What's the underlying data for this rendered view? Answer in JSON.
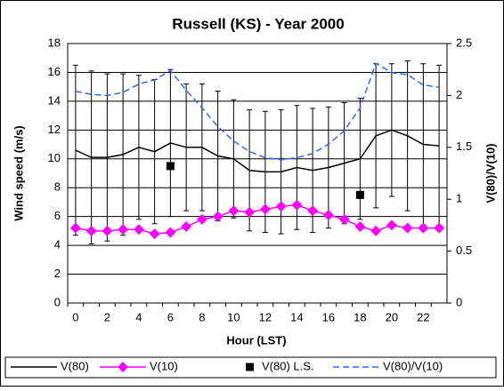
{
  "chart_data": {
    "type": "line",
    "title": "Russell (KS) - Year 2000",
    "x_label": "Hour (LST)",
    "y_label": "Wind speed (m/s)",
    "y2_label": "V(80)/V(10)",
    "categories": [
      "0",
      null,
      "2",
      null,
      "4",
      null,
      "6",
      null,
      "8",
      null,
      "10",
      null,
      "12",
      null,
      "14",
      null,
      "16",
      null,
      "18",
      null,
      "20",
      null,
      "22",
      null
    ],
    "ylim": [
      0,
      18
    ],
    "yticks": [
      0,
      2,
      4,
      6,
      8,
      10,
      12,
      14,
      16,
      18
    ],
    "y2lim": [
      0,
      2.5
    ],
    "y2ticks": [
      0,
      0.5,
      1,
      1.5,
      2,
      2.5
    ],
    "grid": true,
    "legend": "bottom",
    "series": [
      {
        "name": "V(80)",
        "color": "#000000",
        "line": "solid",
        "marker": "none",
        "values": [
          10.6,
          10.1,
          10.1,
          10.3,
          10.8,
          10.5,
          11.1,
          10.8,
          10.8,
          10.2,
          10.0,
          9.2,
          9.1,
          9.1,
          9.4,
          9.2,
          9.4,
          9.7,
          10.0,
          11.6,
          12.0,
          11.6,
          11.0,
          10.9
        ],
        "errors": [
          5.9,
          6.0,
          5.8,
          5.6,
          5.0,
          5.0,
          5.1,
          4.4,
          4.4,
          4.5,
          4.1,
          4.2,
          4.2,
          4.3,
          4.3,
          4.3,
          4.2,
          4.2,
          4.2,
          5.0,
          4.6,
          5.2,
          5.6,
          5.6
        ]
      },
      {
        "name": "V(10)",
        "color": "#ff00ff",
        "line": "solid",
        "marker": "diamond",
        "values": [
          5.2,
          5.0,
          5.0,
          5.1,
          5.1,
          4.8,
          4.9,
          5.3,
          5.8,
          6.0,
          6.4,
          6.3,
          6.5,
          6.7,
          6.8,
          6.4,
          6.1,
          5.8,
          5.3,
          5.0,
          5.4,
          5.2,
          5.2,
          5.2
        ]
      },
      {
        "name": "V(80) L.S.",
        "color": "#000000",
        "line": "none",
        "marker": "square",
        "values": [
          null,
          null,
          null,
          null,
          null,
          null,
          9.5,
          null,
          null,
          null,
          null,
          null,
          null,
          null,
          null,
          null,
          null,
          null,
          7.5,
          null,
          null,
          null,
          null,
          null
        ]
      },
      {
        "name": "V(80)/V(10)",
        "color": "#3366ff",
        "line": "dashed",
        "marker": "none",
        "axis": "y2",
        "values": [
          2.04,
          2.01,
          2.0,
          2.03,
          2.11,
          2.15,
          2.24,
          2.05,
          1.88,
          1.7,
          1.56,
          1.46,
          1.4,
          1.38,
          1.4,
          1.44,
          1.53,
          1.66,
          1.88,
          2.31,
          2.22,
          2.2,
          2.1,
          2.08
        ]
      }
    ]
  }
}
